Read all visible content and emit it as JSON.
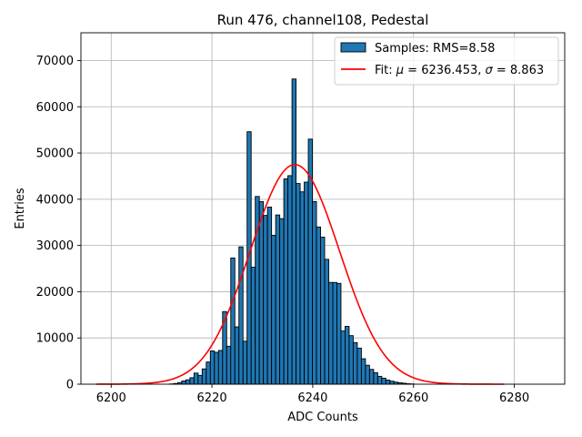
{
  "chart_data": {
    "type": "histogram",
    "title": "Run 476, channel108, Pedestal",
    "xlabel": "ADC Counts",
    "ylabel": "Entries",
    "xlim": [
      6194,
      6290
    ],
    "ylim": [
      0,
      76000
    ],
    "xticks": [
      6200,
      6220,
      6240,
      6260,
      6280
    ],
    "yticks": [
      0,
      10000,
      20000,
      30000,
      40000,
      50000,
      60000,
      70000
    ],
    "grid": true,
    "legend_position": "top-right",
    "colors": {
      "bars": "#1f77b4",
      "bar_edge": "#000000",
      "fit": "#ff0000",
      "grid": "#b0b0b0"
    },
    "bins": {
      "start": 6197,
      "width": 0.81,
      "counts": [
        0,
        0,
        0,
        0,
        0,
        0,
        0,
        0,
        0,
        0,
        0,
        0,
        0,
        0,
        0,
        0,
        0,
        0,
        50,
        150,
        350,
        700,
        950,
        1400,
        2400,
        1900,
        3300,
        4800,
        7200,
        6900,
        7300,
        15700,
        8200,
        27300,
        12400,
        29700,
        9300,
        54600,
        25300,
        40600,
        39500,
        36500,
        38300,
        32200,
        36600,
        35800,
        44400,
        45100,
        66000,
        43400,
        41600,
        43700,
        53000,
        39500,
        34000,
        31800,
        27000,
        22000,
        22000,
        21800,
        11500,
        12500,
        10500,
        9000,
        7800,
        5500,
        4100,
        3200,
        2500,
        1700,
        1300,
        900,
        650,
        450,
        300,
        200,
        100,
        50,
        0,
        0,
        0,
        0,
        0,
        0,
        0,
        0,
        0,
        0,
        0,
        0,
        0,
        0,
        0,
        0,
        0,
        0,
        0,
        0,
        0,
        0,
        0,
        0,
        0,
        0,
        0,
        0,
        0,
        0,
        0
      ]
    },
    "series": [
      {
        "name": "Samples: RMS=8.58",
        "kind": "histogram"
      },
      {
        "name": "Fit",
        "kind": "gaussian",
        "mu": 6236.453,
        "sigma": 8.863,
        "amplitude": 47500,
        "x_range": [
          6197,
          6278
        ]
      }
    ],
    "legend": {
      "entries": [
        {
          "label": "Samples: RMS=8.58",
          "kind": "patch"
        },
        {
          "label_prefix": "Fit: ",
          "mu_symbol": "μ",
          "mu_text": " = 6236.453, ",
          "sigma_symbol": "σ",
          "sigma_text": " = 8.863",
          "kind": "line"
        }
      ]
    }
  }
}
